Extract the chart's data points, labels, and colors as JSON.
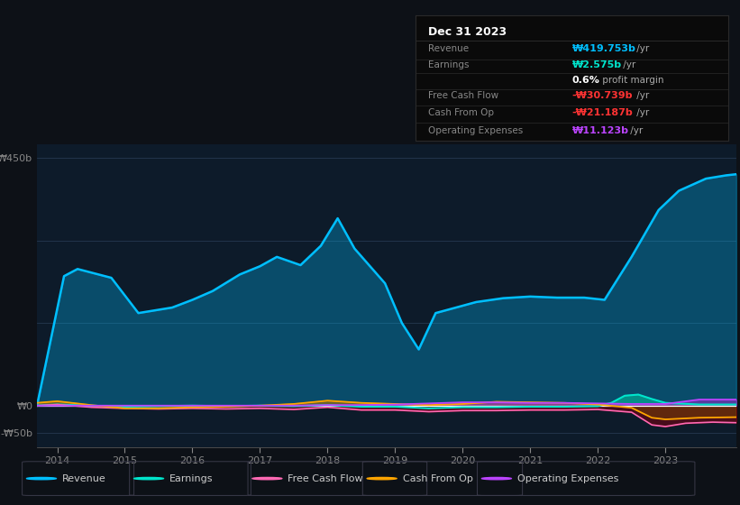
{
  "bg_color": "#0d1117",
  "plot_bg_color": "#0d1b2a",
  "grid_color": "#263850",
  "title": "Dec 31 2023",
  "ylim": [
    -75,
    475
  ],
  "xlabel_years": [
    2014,
    2015,
    2016,
    2017,
    2018,
    2019,
    2020,
    2021,
    2022,
    2023
  ],
  "legend_items": [
    {
      "label": "Revenue",
      "color": "#00bfff"
    },
    {
      "label": "Earnings",
      "color": "#00e5cc"
    },
    {
      "label": "Free Cash Flow",
      "color": "#ff69b4"
    },
    {
      "label": "Cash From Op",
      "color": "#ffa500"
    },
    {
      "label": "Operating Expenses",
      "color": "#bb44ff"
    }
  ],
  "revenue_x": [
    2013.7,
    2014.1,
    2014.3,
    2014.8,
    2015.2,
    2015.7,
    2016.0,
    2016.3,
    2016.7,
    2017.0,
    2017.25,
    2017.6,
    2017.9,
    2018.15,
    2018.4,
    2018.65,
    2018.85,
    2019.1,
    2019.35,
    2019.6,
    2019.9,
    2020.2,
    2020.6,
    2021.0,
    2021.4,
    2021.8,
    2022.1,
    2022.5,
    2022.9,
    2023.2,
    2023.6,
    2023.9,
    2024.05
  ],
  "revenue_y": [
    0,
    235,
    248,
    232,
    168,
    178,
    192,
    208,
    238,
    253,
    270,
    255,
    290,
    340,
    285,
    250,
    222,
    150,
    102,
    168,
    178,
    188,
    195,
    198,
    196,
    196,
    192,
    270,
    355,
    390,
    412,
    418,
    420
  ],
  "earnings_x": [
    2013.7,
    2014.0,
    2014.5,
    2015.0,
    2015.5,
    2016.0,
    2016.5,
    2017.0,
    2017.5,
    2018.0,
    2018.5,
    2019.0,
    2019.5,
    2020.0,
    2020.5,
    2021.0,
    2021.5,
    2022.0,
    2022.2,
    2022.4,
    2022.6,
    2022.8,
    2023.0,
    2023.5,
    2024.05
  ],
  "earnings_y": [
    0,
    2,
    0,
    -2,
    -1,
    0,
    -1,
    0,
    -1,
    1,
    -2,
    -2,
    -5,
    -3,
    -3,
    -2,
    -2,
    -1,
    5,
    18,
    20,
    12,
    5,
    2,
    2
  ],
  "fcf_x": [
    2013.7,
    2014.0,
    2014.5,
    2015.0,
    2015.5,
    2016.0,
    2016.5,
    2017.0,
    2017.5,
    2018.0,
    2018.5,
    2019.0,
    2019.5,
    2020.0,
    2020.5,
    2021.0,
    2021.5,
    2022.0,
    2022.5,
    2022.8,
    2023.0,
    2023.3,
    2023.7,
    2024.05
  ],
  "fcf_y": [
    0,
    2,
    -3,
    -5,
    -6,
    -5,
    -6,
    -5,
    -7,
    -3,
    -8,
    -8,
    -11,
    -9,
    -9,
    -8,
    -8,
    -7,
    -12,
    -35,
    -38,
    -32,
    -30,
    -31
  ],
  "cfo_x": [
    2013.7,
    2014.0,
    2014.5,
    2015.0,
    2015.5,
    2016.0,
    2016.5,
    2017.0,
    2017.5,
    2018.0,
    2018.5,
    2019.0,
    2019.5,
    2020.0,
    2020.5,
    2021.0,
    2021.5,
    2022.0,
    2022.5,
    2022.8,
    2023.0,
    2023.5,
    2024.05
  ],
  "cfo_y": [
    5,
    8,
    1,
    -5,
    -5,
    -3,
    -2,
    0,
    3,
    9,
    5,
    3,
    1,
    3,
    7,
    6,
    5,
    2,
    -4,
    -22,
    -25,
    -22,
    -21
  ],
  "opex_x": [
    2013.7,
    2014.0,
    2014.5,
    2015.0,
    2015.5,
    2016.0,
    2016.5,
    2017.0,
    2017.5,
    2018.0,
    2018.5,
    2019.0,
    2019.5,
    2020.0,
    2020.5,
    2021.0,
    2021.5,
    2022.0,
    2022.5,
    2023.0,
    2023.5,
    2024.05
  ],
  "opex_y": [
    0,
    0,
    0,
    0,
    0,
    0,
    0,
    0,
    0,
    1,
    1,
    2,
    4,
    6,
    6,
    5,
    5,
    4,
    3,
    3,
    11,
    11
  ]
}
